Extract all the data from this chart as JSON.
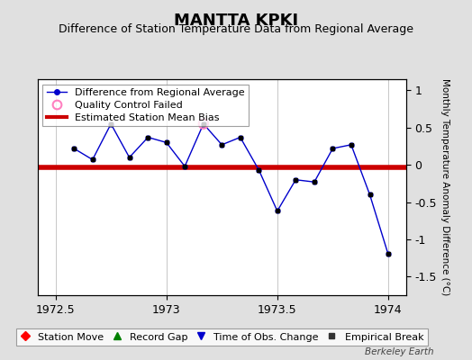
{
  "title": "MANTTA KPKI",
  "subtitle": "Difference of Station Temperature Data from Regional Average",
  "ylabel_right": "Monthly Temperature Anomaly Difference (°C)",
  "watermark": "Berkeley Earth",
  "xlim": [
    1972.42,
    1974.08
  ],
  "ylim": [
    -1.75,
    1.15
  ],
  "yticks": [
    -1.5,
    -1.0,
    -0.5,
    0.0,
    0.5,
    1.0
  ],
  "xticks": [
    1972.5,
    1973.0,
    1973.5,
    1974.0
  ],
  "xticklabels": [
    "1972.5",
    "1973",
    "1973.5",
    "1974"
  ],
  "line_color": "#0000cc",
  "marker_color": "#000000",
  "bias_color": "#cc0000",
  "bias_value": -0.03,
  "qc_fail_x": [
    1973.167
  ],
  "qc_fail_y": [
    0.55
  ],
  "x_data": [
    1972.583,
    1972.667,
    1972.75,
    1972.833,
    1972.917,
    1973.0,
    1973.083,
    1973.167,
    1973.25,
    1973.333,
    1973.417,
    1973.5,
    1973.583,
    1973.667,
    1973.75,
    1973.833,
    1973.917,
    1974.0
  ],
  "y_data": [
    0.22,
    0.07,
    0.55,
    0.1,
    0.37,
    0.3,
    -0.02,
    0.55,
    0.27,
    0.37,
    -0.07,
    -0.62,
    -0.2,
    -0.23,
    0.22,
    0.27,
    -0.4,
    -1.2
  ],
  "background_color": "#e0e0e0",
  "plot_bg_color": "#ffffff",
  "grid_color": "#b0b0b0",
  "title_fontsize": 13,
  "subtitle_fontsize": 9,
  "tick_fontsize": 9,
  "legend_fontsize": 8,
  "ylabel_fontsize": 7.5
}
